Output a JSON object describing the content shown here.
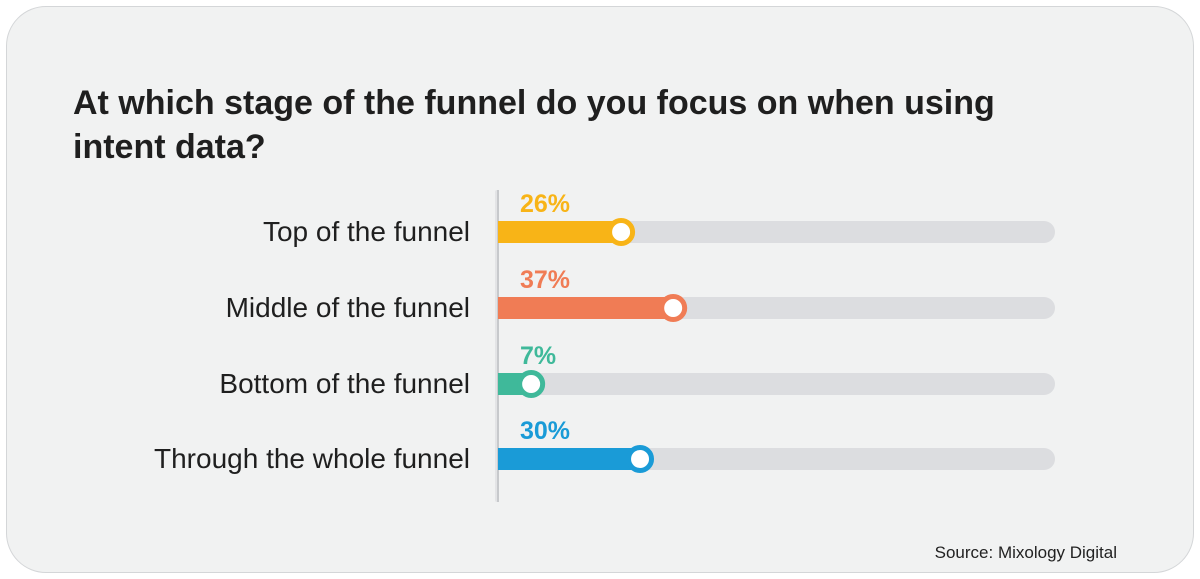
{
  "title": "At which stage of the funnel do you focus on when using intent data?",
  "source": "Source: Mixology Digital",
  "colors": {
    "track": "#dcdde0",
    "axis": "#c7c9cc",
    "label": "#1f1f1f"
  },
  "chart_data": {
    "type": "bar",
    "orientation": "horizontal",
    "categories": [
      "Top of the funnel",
      "Middle of the funnel",
      "Bottom of the funnel",
      "Through the whole funnel"
    ],
    "values": [
      26,
      37,
      7,
      30
    ],
    "value_labels": [
      "26%",
      "37%",
      "7%",
      "30%"
    ],
    "colors": [
      "#f8b417",
      "#f07c55",
      "#3fb99a",
      "#1a9bd7"
    ],
    "xlim": [
      0,
      100
    ],
    "unit": "%"
  }
}
